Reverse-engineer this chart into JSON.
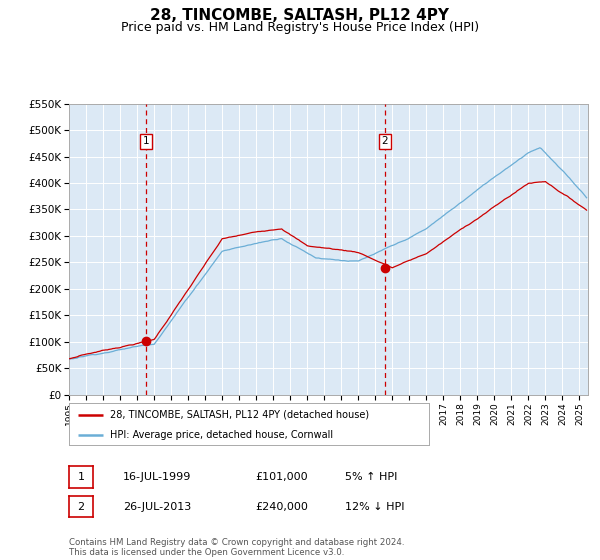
{
  "title": "28, TINCOMBE, SALTASH, PL12 4PY",
  "subtitle": "Price paid vs. HM Land Registry's House Price Index (HPI)",
  "title_fontsize": 11,
  "subtitle_fontsize": 9,
  "background_color": "#ffffff",
  "plot_bg_color": "#dce9f5",
  "grid_color": "#ffffff",
  "hpi_line_color": "#6baed6",
  "price_line_color": "#cc0000",
  "marker_color": "#cc0000",
  "vline_color": "#cc0000",
  "ylim": [
    0,
    550000
  ],
  "yticks": [
    0,
    50000,
    100000,
    150000,
    200000,
    250000,
    300000,
    350000,
    400000,
    450000,
    500000,
    550000
  ],
  "ytick_labels": [
    "£0",
    "£50K",
    "£100K",
    "£150K",
    "£200K",
    "£250K",
    "£300K",
    "£350K",
    "£400K",
    "£450K",
    "£500K",
    "£550K"
  ],
  "sale1_date_num": 1999.54,
  "sale1_price": 101000,
  "sale1_label": "1",
  "sale2_date_num": 2013.56,
  "sale2_price": 240000,
  "sale2_label": "2",
  "legend_line1": "28, TINCOMBE, SALTASH, PL12 4PY (detached house)",
  "legend_line2": "HPI: Average price, detached house, Cornwall",
  "table_row1": [
    "1",
    "16-JUL-1999",
    "£101,000",
    "5% ↑ HPI"
  ],
  "table_row2": [
    "2",
    "26-JUL-2013",
    "£240,000",
    "12% ↓ HPI"
  ],
  "footnote": "Contains HM Land Registry data © Crown copyright and database right 2024.\nThis data is licensed under the Open Government Licence v3.0.",
  "xstart": 1995.0,
  "xend": 2025.5
}
